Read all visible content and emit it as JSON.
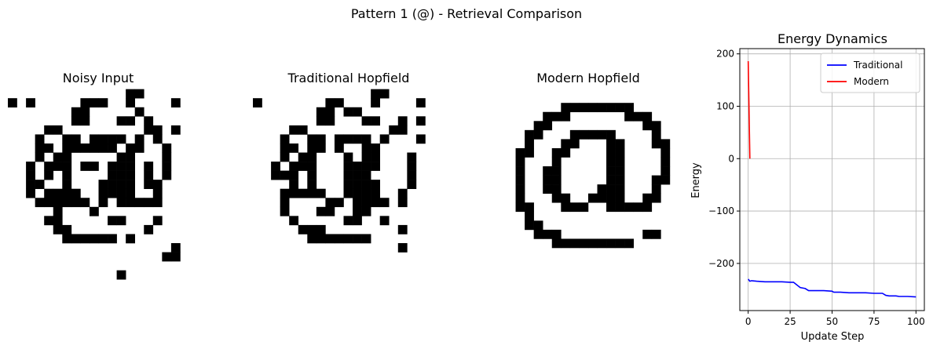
{
  "suptitle": "Pattern 1 (@) - Retrieval Comparison",
  "panels": {
    "noisy": {
      "title": "Noisy Input",
      "grid": [
        "....................",
        "....................",
        "....................",
        ".............##.....",
        "#.#.....###..#....#.",
        ".......##.....#.....",
        ".......##...##.#....",
        "....##.........##.#.",
        "...#..##.####.#.#...",
        "...##.######.##..#..",
        "...#.##.....##...#..",
        "..#.###.##.###.#.#..",
        "..#.#.#....###.#.#..",
        "..##..#...####.##...",
        "..#.####..####..#...",
        "...######.#.#####...",
        ".....#...#..........",
        "....##.....##...#...",
        ".....##........#....",
        "......######.#......",
        "..................#.",
        ".................##.",
        "....................",
        "............#......."
      ]
    },
    "traditional": {
      "title": "Traditional Hopfield",
      "grid": [
        "....................",
        "....................",
        "....................",
        ".............##.....",
        "#.......##...#....#.",
        ".......##.##........",
        ".......##...##..#.#.",
        "....##.........##...",
        "...#..##.####.#...#.",
        "...##.##.#..##......",
        "...#.##...#.##...#..",
        "..#.###...####...#..",
        "..###.#...###....#..",
        "....#.#...####...#..",
        "...#####..####..#...",
        "...#....##.####.#...",
        "...#...##..##.......",
        "....#.....##..#.....",
        ".....###........#...",
        "......#######.......",
        "................#..."
      ]
    },
    "modern": {
      "title": "Modern Hopfield",
      "grid": [
        "....................",
        "....................",
        "....................",
        "....................",
        "......########......",
        "....###......###....",
        "...##..........##...",
        "..##...#####....#...",
        "..#...##...##...##..",
        ".##..##....##....#..",
        ".#...#.....##....#..",
        ".#..##.....##....#..",
        ".#..##.....##...##..",
        ".#..##....###...#...",
        ".#...##..####..##...",
        ".##...###..#####....",
        "..#.................",
        "..##................",
        "...###.........##...",
        ".....#########......"
      ]
    }
  },
  "chart_data": {
    "type": "line",
    "title": "Energy Dynamics",
    "xlabel": "Update Step",
    "ylabel": "Energy",
    "xlim": [
      -5,
      105
    ],
    "ylim": [
      -290,
      210
    ],
    "xticks": [
      0,
      25,
      50,
      75,
      100
    ],
    "yticks": [
      -200,
      -100,
      0,
      100,
      200
    ],
    "ytick_labels": [
      "−200",
      "−100",
      "0",
      "100",
      "200"
    ],
    "grid": true,
    "legend_position": "top-right",
    "series": [
      {
        "name": "Traditional",
        "color": "#0000ff",
        "x": [
          0,
          1,
          2,
          5,
          10,
          15,
          20,
          25,
          27,
          29,
          31,
          34,
          36,
          40,
          45,
          50,
          51,
          55,
          60,
          65,
          68,
          70,
          75,
          80,
          82,
          84,
          88,
          90,
          95,
          100
        ],
        "y": [
          -230,
          -234,
          -233,
          -234,
          -235,
          -235,
          -235,
          -236,
          -236,
          -241,
          -246,
          -248,
          -252,
          -252,
          -252,
          -253,
          -255,
          -255,
          -256,
          -256,
          -256,
          -256,
          -257,
          -257,
          -261,
          -262,
          -262,
          -263,
          -263,
          -264
        ]
      },
      {
        "name": "Modern",
        "color": "#ff0000",
        "x": [
          0,
          1
        ],
        "y": [
          186,
          0
        ]
      }
    ]
  }
}
